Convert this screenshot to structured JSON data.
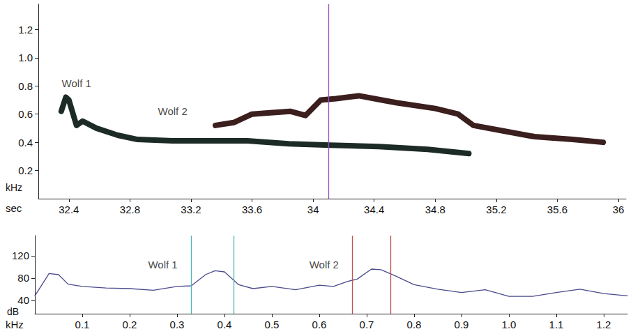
{
  "chart_data": [
    {
      "type": "line",
      "x_label": "sec",
      "y_label": "kHz",
      "xlim": [
        32.2,
        36.05
      ],
      "ylim": [
        0,
        1.38
      ],
      "xticks": [
        32.4,
        32.8,
        33.2,
        33.6,
        34,
        34.4,
        34.8,
        35.2,
        35.6,
        36
      ],
      "yticks": [
        0.2,
        0.4,
        0.6,
        0.8,
        {
          "value": 1,
          "label": "1.0"
        },
        1.2
      ],
      "grid": false,
      "series": [
        {
          "color": "#1d2b27",
          "x": [
            32.35,
            32.38,
            32.4,
            32.45,
            32.49,
            32.58,
            32.72,
            32.85,
            33.08,
            33.3,
            33.57,
            33.84,
            34.11,
            34.43,
            34.75,
            35.02
          ],
          "values": [
            0.62,
            0.72,
            0.7,
            0.52,
            0.55,
            0.5,
            0.45,
            0.42,
            0.41,
            0.41,
            0.41,
            0.39,
            0.38,
            0.37,
            0.35,
            0.32
          ]
        },
        {
          "color": "#3b1e1e",
          "x": [
            33.36,
            33.48,
            33.6,
            33.72,
            33.85,
            33.95,
            34.05,
            34.15,
            34.3,
            34.45,
            34.55,
            34.8,
            34.95,
            35.05,
            35.25,
            35.45,
            35.7,
            35.9
          ],
          "values": [
            0.52,
            0.54,
            0.6,
            0.61,
            0.62,
            0.59,
            0.7,
            0.71,
            0.73,
            0.7,
            0.68,
            0.64,
            0.6,
            0.52,
            0.48,
            0.44,
            0.42,
            0.4
          ]
        }
      ],
      "annotations": [
        {
          "text": "Wolf 1",
          "x": 32.45,
          "y": 0.82
        },
        {
          "text": "Wolf 2",
          "x": 33.08,
          "y": 0.62
        }
      ],
      "vlines": [
        {
          "x": 34.1,
          "color": "#9b4fc4"
        }
      ]
    },
    {
      "type": "line",
      "x_label": "kHz",
      "y_label": "dB",
      "xlim": [
        0,
        1.25
      ],
      "ylim": [
        16,
        156
      ],
      "xticks": [
        0.1,
        0.2,
        0.3,
        0.4,
        0.5,
        0.6,
        0.7,
        0.8,
        0.9,
        {
          "value": 1,
          "label": "1.0"
        },
        1.1,
        1.2
      ],
      "yticks": [
        40,
        80,
        120
      ],
      "grid": false,
      "series": [
        {
          "color": "#4a4a8c",
          "x": [
            0,
            0.03,
            0.05,
            0.07,
            0.1,
            0.15,
            0.2,
            0.25,
            0.3,
            0.33,
            0.36,
            0.38,
            0.4,
            0.43,
            0.46,
            0.5,
            0.55,
            0.6,
            0.63,
            0.66,
            0.68,
            0.71,
            0.73,
            0.76,
            0.8,
            0.85,
            0.9,
            0.95,
            1,
            1.05,
            1.1,
            1.15,
            1.2,
            1.25
          ],
          "values": [
            48,
            88,
            86,
            69,
            65,
            62,
            61,
            58,
            65,
            66,
            86,
            93,
            91,
            68,
            61,
            65,
            59,
            67,
            65,
            74,
            78,
            96,
            95,
            84,
            68,
            60,
            54,
            59,
            47,
            47,
            54,
            60,
            52,
            48
          ]
        }
      ],
      "annotations": [
        {
          "text": "Wolf 1",
          "x": 0.27,
          "y": 104
        },
        {
          "text": "Wolf 2",
          "x": 0.61,
          "y": 104
        }
      ],
      "vlines": [
        {
          "x": 0.33,
          "color": "#4bb5b8"
        },
        {
          "x": 0.425,
          "color": "#4bb5b8"
        },
        {
          "x": 0.67,
          "color": "#c0504d"
        },
        {
          "x": 0.75,
          "color": "#c0504d"
        }
      ]
    }
  ]
}
